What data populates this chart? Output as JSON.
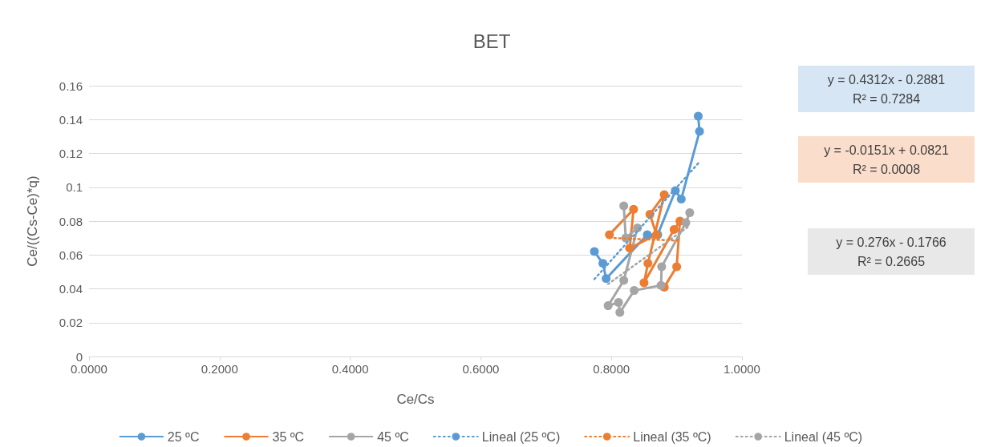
{
  "chart_data": {
    "type": "line",
    "title": "BET",
    "xlabel": "Ce/Cs",
    "ylabel": "Ce/((Cs-Ce)*q)",
    "xlim": [
      0,
      1
    ],
    "xticks": [
      {
        "value": 0,
        "label": "0.0000"
      },
      {
        "value": 0.2,
        "label": "0.2000"
      },
      {
        "value": 0.4,
        "label": "0.4000"
      },
      {
        "value": 0.6,
        "label": "0.6000"
      },
      {
        "value": 0.8,
        "label": "0.8000"
      },
      {
        "value": 1,
        "label": "1.0000"
      }
    ],
    "ylim": [
      0,
      0.16
    ],
    "yticks": [
      0,
      0.02,
      0.04,
      0.06,
      0.08,
      0.1,
      0.12,
      0.14,
      0.16
    ],
    "grid": "y",
    "legend": "bottom",
    "marker": "circle",
    "line_style": "solid",
    "series": [
      {
        "name": "25 ºC",
        "color": "#5b9bd5",
        "x": [
          0.774,
          0.787,
          0.792,
          0.855,
          0.871,
          0.898,
          0.907,
          0.935,
          0.933
        ],
        "values": [
          0.062,
          0.055,
          0.046,
          0.072,
          0.072,
          0.098,
          0.093,
          0.133,
          0.142
        ]
      },
      {
        "name": "35 ºC",
        "color": "#ed7d31",
        "x": [
          0.797,
          0.834,
          0.828,
          0.869,
          0.859,
          0.881,
          0.856,
          0.85,
          0.896,
          0.905,
          0.9,
          0.881
        ],
        "values": [
          0.072,
          0.087,
          0.064,
          0.072,
          0.084,
          0.0956,
          0.055,
          0.0435,
          0.075,
          0.08,
          0.053,
          0.041
        ]
      },
      {
        "name": "45 ºC",
        "color": "#a5a5a5",
        "x": [
          0.819,
          0.822,
          0.84,
          0.819,
          0.795,
          0.811,
          0.813,
          0.835,
          0.876,
          0.877,
          0.914,
          0.92
        ],
        "values": [
          0.089,
          0.07,
          0.076,
          0.045,
          0.03,
          0.032,
          0.026,
          0.039,
          0.042,
          0.053,
          0.079,
          0.085
        ]
      },
      {
        "name": "Lineal (25 ºC)",
        "type": "line",
        "color": "#5b9bd5",
        "line_style": "dotted",
        "marker": "none",
        "x": [
          0.774,
          0.935
        ],
        "values": [
          0.0457,
          0.115
        ]
      },
      {
        "name": "Lineal (35 ºC)",
        "type": "line",
        "color": "#ed7d31",
        "line_style": "dotted",
        "marker": "none",
        "x": [
          0.797,
          0.905
        ],
        "values": [
          0.0701,
          0.0684
        ]
      },
      {
        "name": "Lineal (45 ºC)",
        "type": "line",
        "color": "#a5a5a5",
        "line_style": "dotted",
        "marker": "none",
        "x": [
          0.795,
          0.92
        ],
        "values": [
          0.0428,
          0.0773
        ]
      }
    ],
    "annotations": [
      "y = 0.4312x - 0.2881\nR² = 0.7284",
      "y = -0.0151x + 0.0821\nR² = 0.0008",
      "y = 0.276x - 0.1766\nR² = 0.2665"
    ]
  }
}
